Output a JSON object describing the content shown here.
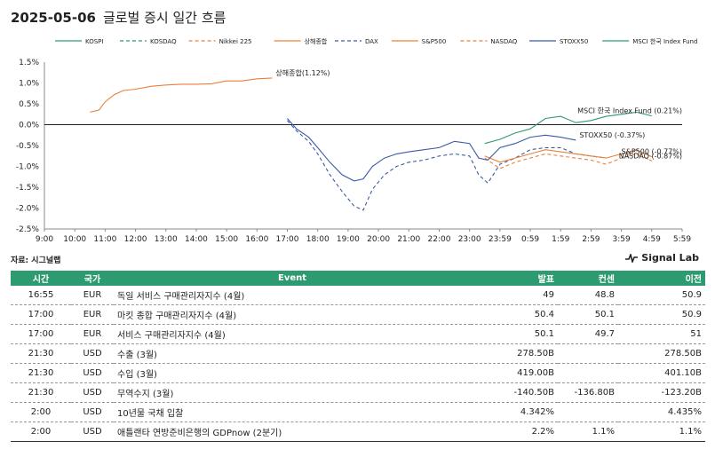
{
  "header": {
    "date": "2025-05-06",
    "title": "글로벌 증시 일간 흐름"
  },
  "chart_data": {
    "type": "line",
    "ylim": [
      -2.5,
      1.5
    ],
    "y_ticks": [
      "1.5%",
      "1.0%",
      "0.5%",
      "0.0%",
      "-0.5%",
      "-1.0%",
      "-1.5%",
      "-2.0%",
      "-2.5%"
    ],
    "x_ticks": [
      "9:00",
      "10:00",
      "11:00",
      "12:00",
      "13:00",
      "14:00",
      "15:00",
      "16:00",
      "17:00",
      "18:00",
      "19:00",
      "20:00",
      "21:00",
      "22:00",
      "23:00",
      "23:59",
      "0:59",
      "1:59",
      "2:59",
      "3:59",
      "4:59",
      "5:59"
    ],
    "legend_position": "top",
    "series": [
      {
        "name": "KOSPI",
        "color": "#2e9a6f",
        "dash": "",
        "points": []
      },
      {
        "name": "KOSDAQ",
        "color": "#2e9a6f",
        "dash": "4,3",
        "points": []
      },
      {
        "name": "Nikkei 225",
        "color": "#e8803a",
        "dash": "4,3",
        "points": []
      },
      {
        "name": "상해종합",
        "color": "#e8803a",
        "dash": "",
        "end_label": "상해종합(1.12%)",
        "points": [
          [
            10.5,
            0.3
          ],
          [
            10.8,
            0.35
          ],
          [
            11,
            0.55
          ],
          [
            11.3,
            0.72
          ],
          [
            11.6,
            0.82
          ],
          [
            12,
            0.85
          ],
          [
            12.5,
            0.92
          ],
          [
            13,
            0.95
          ],
          [
            13.5,
            0.97
          ],
          [
            14,
            0.97
          ],
          [
            14.5,
            0.98
          ],
          [
            15,
            1.05
          ],
          [
            15.5,
            1.05
          ],
          [
            16,
            1.1
          ],
          [
            16.5,
            1.12
          ]
        ]
      },
      {
        "name": "DAX",
        "color": "#3b5ba5",
        "dash": "4,3",
        "points": [
          [
            17,
            0.1
          ],
          [
            17.3,
            -0.15
          ],
          [
            17.7,
            -0.4
          ],
          [
            18,
            -0.7
          ],
          [
            18.4,
            -1.2
          ],
          [
            18.8,
            -1.6
          ],
          [
            19.2,
            -1.95
          ],
          [
            19.5,
            -2.05
          ],
          [
            19.8,
            -1.55
          ],
          [
            20.2,
            -1.2
          ],
          [
            20.6,
            -1.0
          ],
          [
            21,
            -0.9
          ],
          [
            21.5,
            -0.85
          ],
          [
            22,
            -0.75
          ],
          [
            22.5,
            -0.7
          ],
          [
            23,
            -0.75
          ],
          [
            23.3,
            -1.2
          ],
          [
            23.6,
            -1.4
          ],
          [
            24,
            -0.95
          ],
          [
            24.5,
            -0.8
          ],
          [
            25,
            -0.6
          ],
          [
            25.5,
            -0.55
          ],
          [
            26,
            -0.55
          ],
          [
            26.5,
            -0.7
          ],
          [
            27,
            -0.75
          ],
          [
            27.5,
            -0.8
          ]
        ]
      },
      {
        "name": "S&P500",
        "color": "#e8803a",
        "dash": "",
        "end_label": "S&P500 (-0.77%)",
        "points": [
          [
            23.5,
            -0.75
          ],
          [
            24,
            -0.9
          ],
          [
            24.5,
            -0.8
          ],
          [
            25,
            -0.7
          ],
          [
            25.5,
            -0.6
          ],
          [
            26,
            -0.65
          ],
          [
            26.5,
            -0.7
          ],
          [
            27,
            -0.75
          ],
          [
            27.5,
            -0.8
          ],
          [
            28,
            -0.7
          ],
          [
            28.5,
            -0.6
          ],
          [
            29,
            -0.77
          ]
        ]
      },
      {
        "name": "NASDAQ",
        "color": "#e8803a",
        "dash": "4,3",
        "end_label": "NASDAQ (-0.87%)",
        "points": [
          [
            23.5,
            -0.8
          ],
          [
            24,
            -1.05
          ],
          [
            24.5,
            -0.9
          ],
          [
            25,
            -0.8
          ],
          [
            25.5,
            -0.7
          ],
          [
            26,
            -0.75
          ],
          [
            26.5,
            -0.8
          ],
          [
            27,
            -0.85
          ],
          [
            27.5,
            -0.95
          ],
          [
            28,
            -0.8
          ],
          [
            28.5,
            -0.7
          ],
          [
            29,
            -0.87
          ]
        ]
      },
      {
        "name": "STOXX50",
        "color": "#3b5ba5",
        "dash": "",
        "end_label": "STOXX50 (-0.37%)",
        "points": [
          [
            17,
            0.15
          ],
          [
            17.3,
            -0.1
          ],
          [
            17.7,
            -0.3
          ],
          [
            18,
            -0.55
          ],
          [
            18.4,
            -0.9
          ],
          [
            18.8,
            -1.2
          ],
          [
            19.2,
            -1.35
          ],
          [
            19.5,
            -1.3
          ],
          [
            19.8,
            -1.0
          ],
          [
            20.2,
            -0.8
          ],
          [
            20.6,
            -0.7
          ],
          [
            21,
            -0.65
          ],
          [
            21.5,
            -0.6
          ],
          [
            22,
            -0.55
          ],
          [
            22.5,
            -0.4
          ],
          [
            23,
            -0.45
          ],
          [
            23.3,
            -0.8
          ],
          [
            23.6,
            -0.85
          ],
          [
            24,
            -0.55
          ],
          [
            24.5,
            -0.45
          ],
          [
            25,
            -0.3
          ],
          [
            25.5,
            -0.25
          ],
          [
            26,
            -0.3
          ],
          [
            26.5,
            -0.37
          ]
        ]
      },
      {
        "name": "MSCI 한국 Index Fund",
        "color": "#2e9a6f",
        "dash": "",
        "end_label": "MSCI 한국 Index Fund (0.21%)",
        "points": [
          [
            23.5,
            -0.45
          ],
          [
            24,
            -0.35
          ],
          [
            24.5,
            -0.2
          ],
          [
            25,
            -0.1
          ],
          [
            25.5,
            0.15
          ],
          [
            26,
            0.2
          ],
          [
            26.5,
            0.05
          ],
          [
            27,
            0.1
          ],
          [
            27.5,
            0.2
          ],
          [
            28,
            0.25
          ],
          [
            28.5,
            0.3
          ],
          [
            29,
            0.21
          ]
        ]
      }
    ]
  },
  "source": "자료: 시그널랩",
  "brand": "Signal Lab",
  "table": {
    "headers": [
      "시간",
      "국가",
      "Event",
      "발표",
      "컨센",
      "이전"
    ],
    "rows": [
      [
        "16:55",
        "EUR",
        "독일 서비스 구매관리자지수 (4월)",
        "49",
        "48.8",
        "50.9"
      ],
      [
        "17:00",
        "EUR",
        "마킷 종합 구매관리자지수 (4월)",
        "50.4",
        "50.1",
        "50.9"
      ],
      [
        "17:00",
        "EUR",
        "서비스 구매관리자지수 (4월)",
        "50.1",
        "49.7",
        "51"
      ],
      [
        "21:30",
        "USD",
        "수출 (3월)",
        "278.50B",
        "",
        "278.50B"
      ],
      [
        "21:30",
        "USD",
        "수입 (3월)",
        "419.00B",
        "",
        "401.10B"
      ],
      [
        "21:30",
        "USD",
        "무역수지 (3월)",
        "-140.50B",
        "-136.80B",
        "-123.20B"
      ],
      [
        "2:00",
        "USD",
        "10년물 국채 입찰",
        "4.342%",
        "",
        "4.435%"
      ],
      [
        "2:00",
        "USD",
        "애틀랜타 연방준비은행의 GDPnow (2분기)",
        "2.2%",
        "1.1%",
        "1.1%"
      ]
    ]
  }
}
